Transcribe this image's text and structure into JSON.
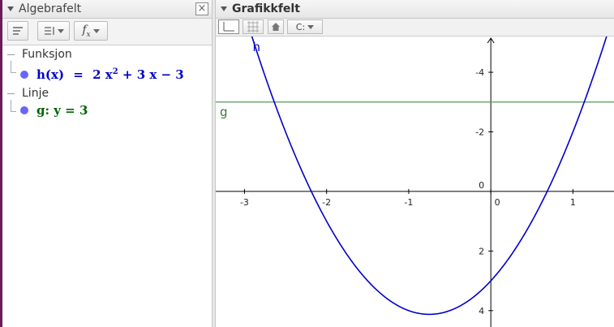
{
  "algebra": {
    "title": "Algebrafelt",
    "close_glyph": "×",
    "toolbar": {
      "fx_label": "f",
      "fx_sub": "x",
      "icons": [
        "description-icon",
        "sort-icon",
        "fx-icon"
      ]
    },
    "categories": [
      {
        "label": "Funksjon"
      },
      {
        "label": "Linje"
      }
    ],
    "items": [
      {
        "name": "h(x)",
        "eq": "=",
        "expr_a": "2 x",
        "expr_sup": "2",
        "expr_b": "+ 3 x − 3",
        "color": "#0000cc",
        "dot_color": "#6666ff"
      },
      {
        "text": "g: y = 3",
        "color": "#006400",
        "dot_color": "#6666ff"
      }
    ]
  },
  "graphics": {
    "title": "Grafikkfelt",
    "toolbar_icons": [
      "axes-toggle-icon",
      "grid-toggle-icon",
      "home-icon",
      "point-capture-icon"
    ],
    "capture_label": "C:",
    "x_ticks": [
      "-3",
      "-2",
      "-1",
      "0",
      "1"
    ],
    "y_ticks": [
      "4",
      "2",
      "0",
      "-2",
      "-4"
    ],
    "curve_label": "h",
    "line_label": "g",
    "curve_color": "#0000cc",
    "line_color": "#559955"
  },
  "chart_data": {
    "type": "line",
    "series": [
      {
        "name": "h",
        "function": "2x^2 + 3x - 3"
      },
      {
        "name": "g",
        "function": "y = 3"
      }
    ],
    "xlim": [
      -3.35,
      1.5
    ],
    "ylim": [
      -4.55,
      5.2
    ],
    "x_tick_values": [
      -3,
      -2,
      -1,
      0,
      1
    ],
    "y_tick_values": [
      -4,
      -2,
      0,
      2,
      4
    ],
    "grid": false
  }
}
